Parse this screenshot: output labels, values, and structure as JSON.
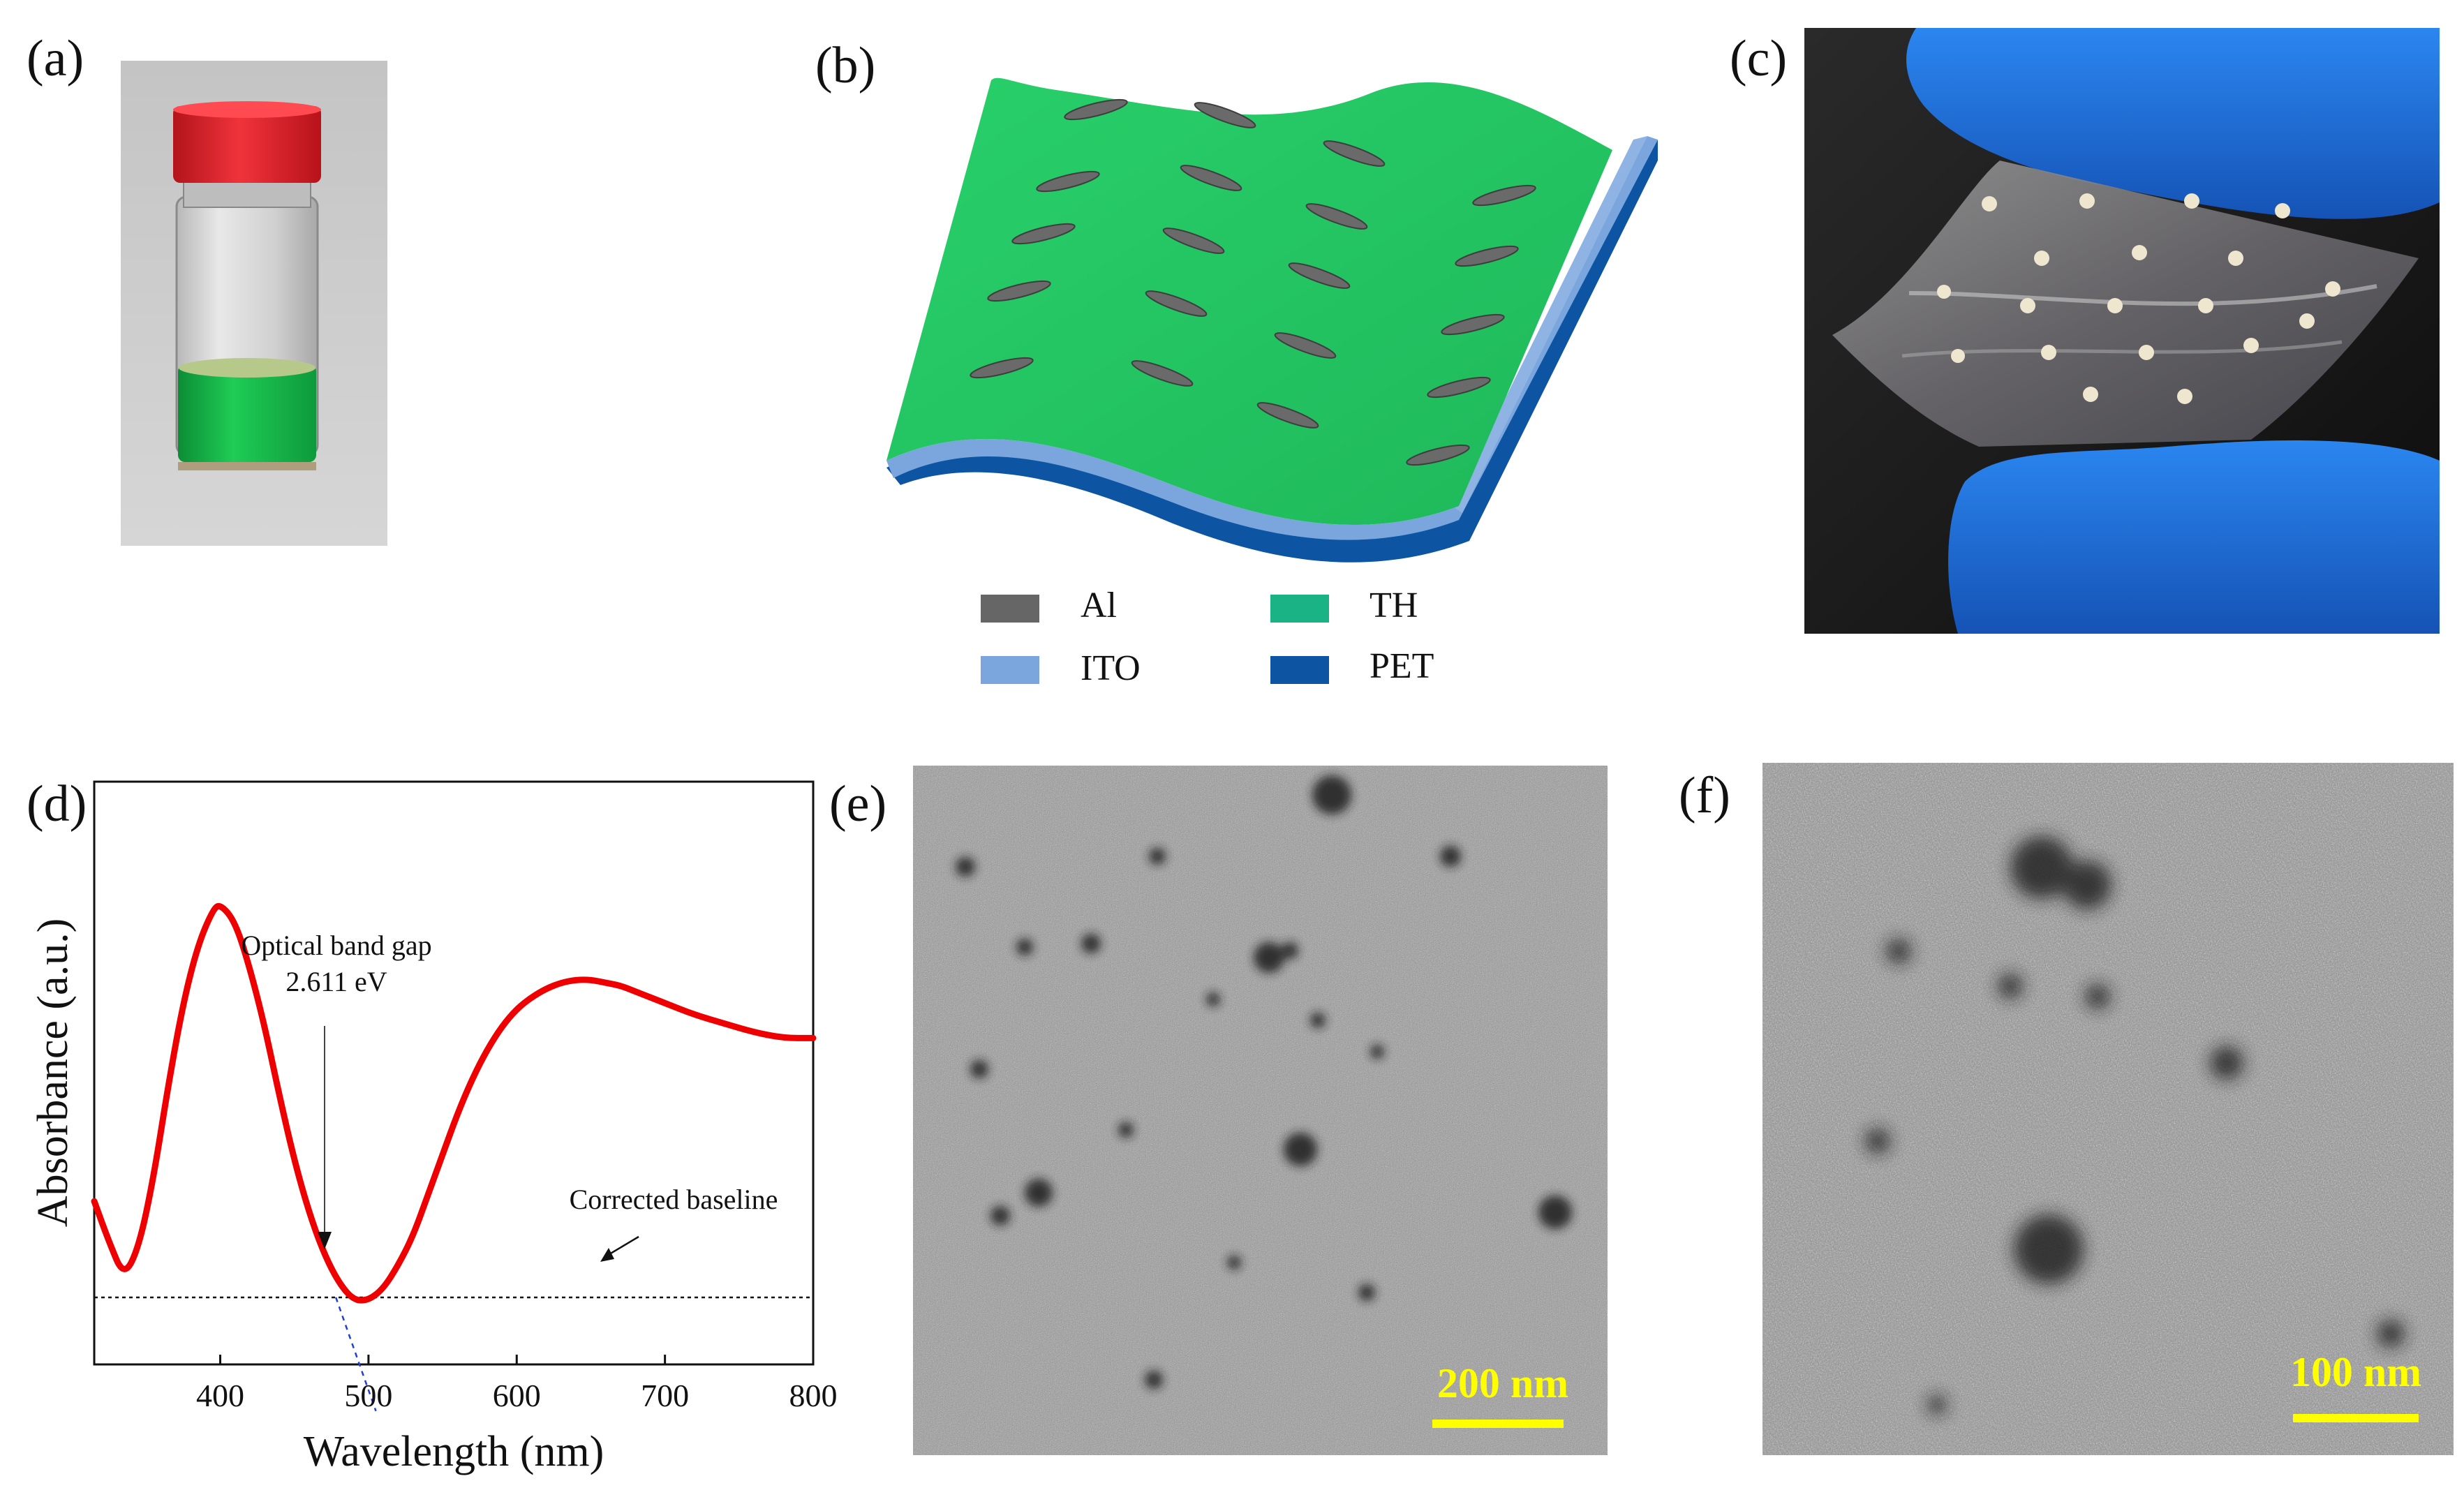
{
  "panels": {
    "a": {
      "label": "(a)"
    },
    "b": {
      "label": "(b)"
    },
    "c": {
      "label": "(c)"
    },
    "d": {
      "label": "(d)"
    },
    "e": {
      "label": "(e)"
    },
    "f": {
      "label": "(f)"
    }
  },
  "legend": {
    "items": [
      {
        "label": "Al",
        "color": "#666666"
      },
      {
        "label": "TH",
        "color": "#1ab386"
      },
      {
        "label": "ITO",
        "color": "#7aa6dd"
      },
      {
        "label": "PET",
        "color": "#0d55a3"
      }
    ]
  },
  "colors": {
    "film_green": "#2fcf6a",
    "electrode_gray": "#666666",
    "vial_cap": "#e6212a",
    "solution_green": "#19b84b",
    "glove_blue": "#1b6fd6",
    "curve_red": "#ee0000",
    "scale_yellow": "#ffff00"
  },
  "tem": {
    "e": {
      "scale_label": "200 nm"
    },
    "f": {
      "scale_label": "100 nm"
    }
  },
  "chart_data": {
    "type": "line",
    "xlabel": "Wavelength (nm)",
    "ylabel": "Absorbance (a.u.)",
    "xlim": [
      315,
      800
    ],
    "ylim": [
      0,
      1
    ],
    "xticks": [
      400,
      500,
      600,
      700,
      800
    ],
    "grid": false,
    "series": [
      {
        "color": "#ee0000",
        "x": [
          315,
          325,
          335,
          345,
          355,
          365,
          375,
          385,
          395,
          400,
          410,
          420,
          430,
          440,
          450,
          460,
          470,
          480,
          490,
          500,
          510,
          520,
          530,
          540,
          550,
          560,
          570,
          580,
          590,
          600,
          610,
          620,
          630,
          640,
          650,
          660,
          670,
          680,
          690,
          700,
          720,
          740,
          760,
          780,
          800
        ],
        "y": [
          0.28,
          0.21,
          0.15,
          0.2,
          0.32,
          0.48,
          0.62,
          0.72,
          0.78,
          0.79,
          0.76,
          0.68,
          0.58,
          0.46,
          0.35,
          0.26,
          0.19,
          0.14,
          0.11,
          0.11,
          0.13,
          0.17,
          0.22,
          0.29,
          0.36,
          0.43,
          0.49,
          0.54,
          0.58,
          0.61,
          0.63,
          0.645,
          0.655,
          0.66,
          0.66,
          0.655,
          0.65,
          0.64,
          0.63,
          0.62,
          0.6,
          0.585,
          0.57,
          0.56,
          0.56
        ]
      }
    ],
    "annotations": [
      {
        "text_line1": "Optical band gap",
        "text_line2": "2.611 eV",
        "x": 475,
        "y": 0.19
      },
      {
        "text": "Corrected baseline",
        "x": 650,
        "y": 0.115
      }
    ],
    "baseline_y": 0.115,
    "tangent": {
      "x": [
        478,
        505
      ],
      "y": [
        0.115,
        -0.08
      ]
    }
  }
}
